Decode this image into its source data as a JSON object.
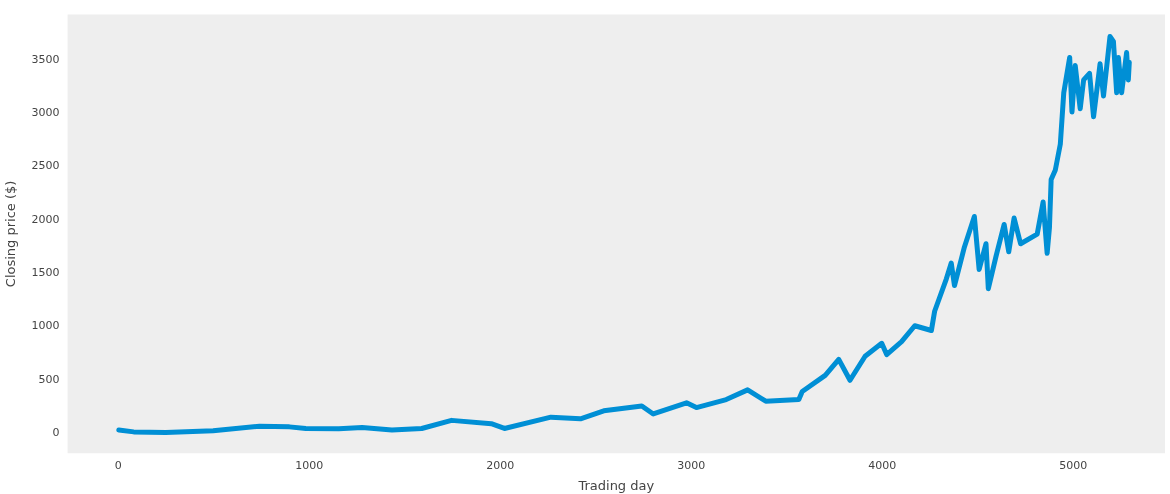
{
  "chart_data": {
    "type": "line",
    "xlabel": "Trading day",
    "ylabel": "Closing price ($)",
    "xlim": [
      -265,
      5480
    ],
    "ylim": [
      -190,
      3925
    ],
    "xticks": [
      0,
      1000,
      2000,
      3000,
      4000,
      5000
    ],
    "yticks": [
      0,
      500,
      1000,
      1500,
      2000,
      2500,
      3000,
      3500
    ],
    "grid": false,
    "legend": false,
    "marker": "none",
    "line_style": "solid",
    "series": [
      {
        "color": "#008fd5",
        "x": [
          3,
          81,
          248,
          497,
          740,
          896,
          982,
          1155,
          1277,
          1433,
          1589,
          1745,
          1953,
          2022,
          2265,
          2420,
          2542,
          2741,
          2801,
          2975,
          3027,
          3183,
          3295,
          3390,
          3563,
          3581,
          3701,
          3772,
          3831,
          3910,
          3997,
          4023,
          4101,
          4170,
          4257,
          4274,
          4335,
          4361,
          4378,
          4430,
          4482,
          4507,
          4543,
          4555,
          4595,
          4638,
          4662,
          4690,
          4724,
          4811,
          4842,
          4863,
          4875,
          4884,
          4906,
          4932,
          4950,
          4981,
          4993,
          5010,
          5036,
          5054,
          5085,
          5106,
          5140,
          5158,
          5192,
          5210,
          5227,
          5236,
          5253,
          5279,
          5288,
          5293
        ],
        "values": [
          27,
          10,
          5,
          21,
          63,
          57,
          42,
          39,
          51,
          27,
          42,
          118,
          87,
          42,
          148,
          133,
          208,
          253,
          178,
          283,
          238,
          313,
          404,
          298,
          314,
          389,
          540,
          690,
          494,
          720,
          841,
          735,
          856,
          1006,
          961,
          1142,
          1444,
          1594,
          1383,
          1745,
          2031,
          1534,
          1775,
          1353,
          1655,
          1956,
          1700,
          2016,
          1775,
          1866,
          2167,
          1685,
          1926,
          2378,
          2468,
          2710,
          3192,
          3523,
          3011,
          3448,
          3041,
          3312,
          3373,
          2966,
          3463,
          3162,
          3719,
          3674,
          3192,
          3523,
          3192,
          3569,
          3312,
          3478
        ]
      }
    ]
  }
}
